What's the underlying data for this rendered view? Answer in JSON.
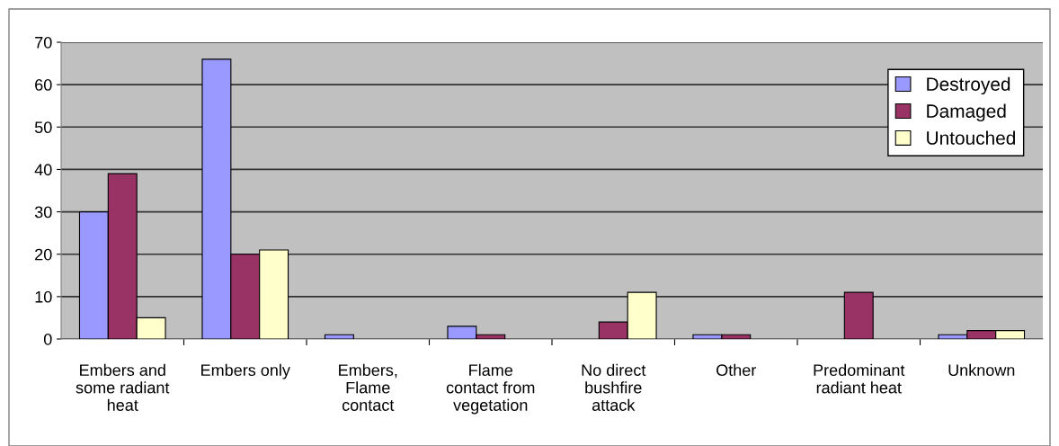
{
  "chart_data": {
    "type": "bar",
    "categories": [
      "Embers and\nsome radiant\nheat",
      "Embers only",
      "Embers,\nFlame\ncontact",
      "Flame\ncontact from\nvegetation",
      "No direct\nbushfire\nattack",
      "Other",
      "Predominant\nradiant heat",
      "Unknown"
    ],
    "series": [
      {
        "name": "Destroyed",
        "color": "#9999ff",
        "values": [
          30,
          66,
          1,
          3,
          0,
          1,
          0,
          1
        ]
      },
      {
        "name": "Damaged",
        "color": "#993366",
        "values": [
          39,
          20,
          0,
          1,
          4,
          1,
          11,
          2
        ]
      },
      {
        "name": "Untouched",
        "color": "#ffffcc",
        "values": [
          5,
          21,
          0,
          0,
          11,
          0,
          0,
          2
        ]
      }
    ],
    "ylim": [
      0,
      70
    ],
    "yticks": [
      0,
      10,
      20,
      30,
      40,
      50,
      60,
      70
    ],
    "grid": "y",
    "legend": "top right"
  }
}
